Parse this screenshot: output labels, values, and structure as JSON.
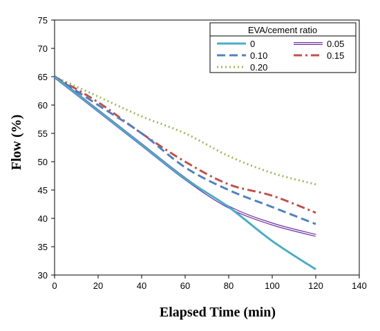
{
  "chart_data": {
    "type": "line",
    "xlabel": "Elapsed Time (min)",
    "ylabel": "Flow (%)",
    "xlim": [
      0,
      140
    ],
    "ylim": [
      30,
      75
    ],
    "xticks": [
      0,
      20,
      40,
      60,
      80,
      100,
      120,
      140
    ],
    "yticks": [
      30,
      35,
      40,
      45,
      50,
      55,
      60,
      65,
      70,
      75
    ],
    "grid": false,
    "legend": {
      "title": "EVA/cement  ratio",
      "placement": "top-right"
    },
    "series": [
      {
        "name": "0",
        "style": "solid",
        "double": false,
        "color": "#4BACC6",
        "x": [
          0,
          20,
          40,
          60,
          80,
          100,
          120
        ],
        "y": [
          65,
          59,
          53,
          47,
          42,
          36,
          31
        ]
      },
      {
        "name": "0.05",
        "style": "solid",
        "double": true,
        "color": "#7030A0",
        "x": [
          0,
          20,
          40,
          60,
          80,
          100,
          120
        ],
        "y": [
          65,
          59,
          53,
          47,
          42,
          39,
          37
        ]
      },
      {
        "name": "0.10",
        "style": "dash",
        "double": false,
        "color": "#4F81BD",
        "x": [
          0,
          20,
          40,
          60,
          80,
          100,
          120
        ],
        "y": [
          65,
          60,
          55,
          49,
          45,
          42,
          39
        ]
      },
      {
        "name": "0.15",
        "style": "dashdot",
        "double": false,
        "color": "#C0504D",
        "x": [
          0,
          20,
          40,
          60,
          80,
          100,
          120
        ],
        "y": [
          65,
          60.5,
          55,
          50,
          46,
          44,
          41
        ]
      },
      {
        "name": "0.20",
        "style": "dot",
        "double": false,
        "color": "#9BBB59",
        "x": [
          0,
          20,
          40,
          60,
          80,
          100,
          120
        ],
        "y": [
          65,
          61.5,
          58,
          55,
          51,
          48,
          46
        ]
      }
    ]
  }
}
